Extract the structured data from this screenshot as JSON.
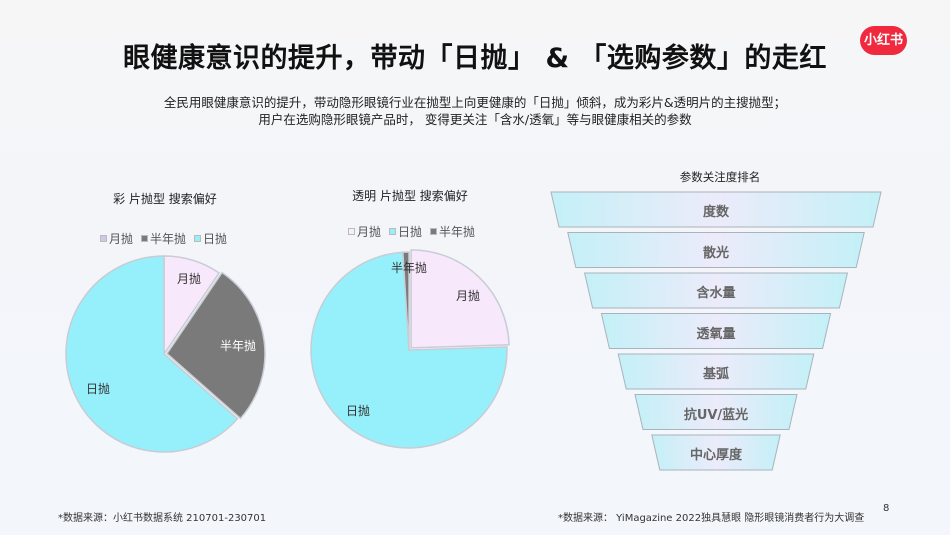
{
  "header": {
    "title": "眼健康意识的提升，带动「日抛」 & 「选购参数」的走红",
    "logo": "小红书",
    "subtitle_line1": "全民用眼健康意识的提升，带动隐形眼镜行业在抛型上向更健康的「日抛」倾斜，成为彩片&透明片的主搜抛型；",
    "subtitle_line2": "用户在选购隐形眼镜产品时， 变得更关注「含水/透氧」等与眼健康相关的参数"
  },
  "colors": {
    "brand": "#f0293f",
    "monthly": "#f8e8fb",
    "half_year": "#7a7a7a",
    "daily": "#96f0fb",
    "funnel_edge": "#c4eef6",
    "funnel_center": "#eeeafa"
  },
  "chart_data": [
    {
      "type": "pie",
      "title": "彩 片抛型 搜索偏好",
      "legend": [
        "月抛",
        "半年抛",
        "日抛"
      ],
      "legend_position": "top",
      "categories": [
        "月抛",
        "半年抛",
        "日抛"
      ],
      "values": [
        9.5,
        27,
        63.5
      ],
      "colors": [
        "#f8e8fb",
        "#7a7a7a",
        "#96f0fb"
      ],
      "start_angle": 0,
      "exploded": [
        "半年抛"
      ]
    },
    {
      "type": "pie",
      "title": "透明 片抛型 搜索偏好",
      "legend": [
        "月抛",
        "日抛",
        "半年抛"
      ],
      "legend_position": "top",
      "categories": [
        "月抛",
        "日抛",
        "半年抛"
      ],
      "values": [
        24.5,
        74.5,
        1
      ],
      "colors": [
        "#f8e8fb",
        "#96f0fb",
        "#7a7a7a"
      ],
      "start_angle": 0,
      "exploded": [
        "月抛"
      ]
    },
    {
      "type": "funnel",
      "title": "参数关注度排名",
      "categories": [
        "度数",
        "散光",
        "含水量",
        "透氧量",
        "基弧",
        "抗UV/蓝光",
        "中心厚度"
      ],
      "rank": [
        1,
        2,
        3,
        4,
        5,
        6,
        7
      ]
    }
  ],
  "footer": {
    "source_left": "*数据来源：小红书数据系统 210701-230701",
    "source_right": "*数据来源： YiMagazine 2022独具慧眼 隐形眼镜消费者行为大调查",
    "page_number": "8"
  }
}
